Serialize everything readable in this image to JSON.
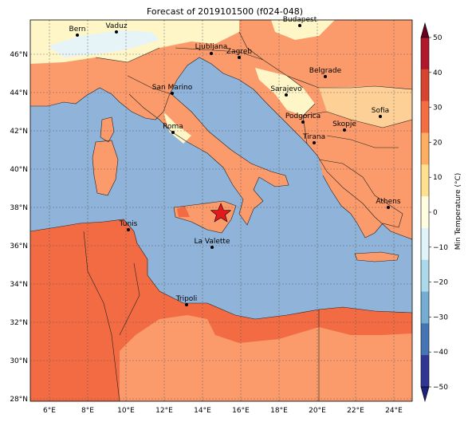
{
  "map": {
    "title": "Forecast of 2019101500 (f024-048)",
    "lon_ticks": [
      "6°E",
      "8°E",
      "10°E",
      "12°E",
      "14°E",
      "16°E",
      "18°E",
      "20°E",
      "22°E",
      "24°E"
    ],
    "lat_ticks": [
      "46°N",
      "44°N",
      "42°N",
      "40°N",
      "38°N",
      "36°N",
      "34°N",
      "32°N",
      "30°N",
      "28°N"
    ],
    "cities": [
      {
        "name": "Bern"
      },
      {
        "name": "Vaduz"
      },
      {
        "name": "Budapest"
      },
      {
        "name": "Ljubljana"
      },
      {
        "name": "Zagreb"
      },
      {
        "name": "Belgrade"
      },
      {
        "name": "San Marino"
      },
      {
        "name": "Sarajevo"
      },
      {
        "name": "Sofia"
      },
      {
        "name": "Podgorica"
      },
      {
        "name": "Skopje"
      },
      {
        "name": "Roma"
      },
      {
        "name": "Tirana"
      },
      {
        "name": "Athens"
      },
      {
        "name": "Tunis"
      },
      {
        "name": "La Valette"
      },
      {
        "name": "Tripoli"
      }
    ],
    "marker": {
      "type": "star",
      "color": "#e31a1c"
    }
  },
  "colorbar": {
    "label": "Min Temperature (°C)",
    "ticks": [
      "50",
      "40",
      "30",
      "20",
      "10",
      "0",
      "−10",
      "−20",
      "−30",
      "−40",
      "−50"
    ],
    "colors": [
      "#67001f",
      "#b2182b",
      "#d6452f",
      "#f46d43",
      "#fdae61",
      "#fee090",
      "#fffddf",
      "#e0f3f8",
      "#abd9e9",
      "#74add1",
      "#4575b4",
      "#313695",
      "#1c2180"
    ]
  },
  "colors": {
    "sea": "#8fb3d9",
    "land_warm": "#fb9b6b",
    "land_hot": "#f26b43",
    "land_mild": "#fdd098",
    "land_cool": "#fff6c8",
    "land_cold": "#e6f4f8"
  }
}
